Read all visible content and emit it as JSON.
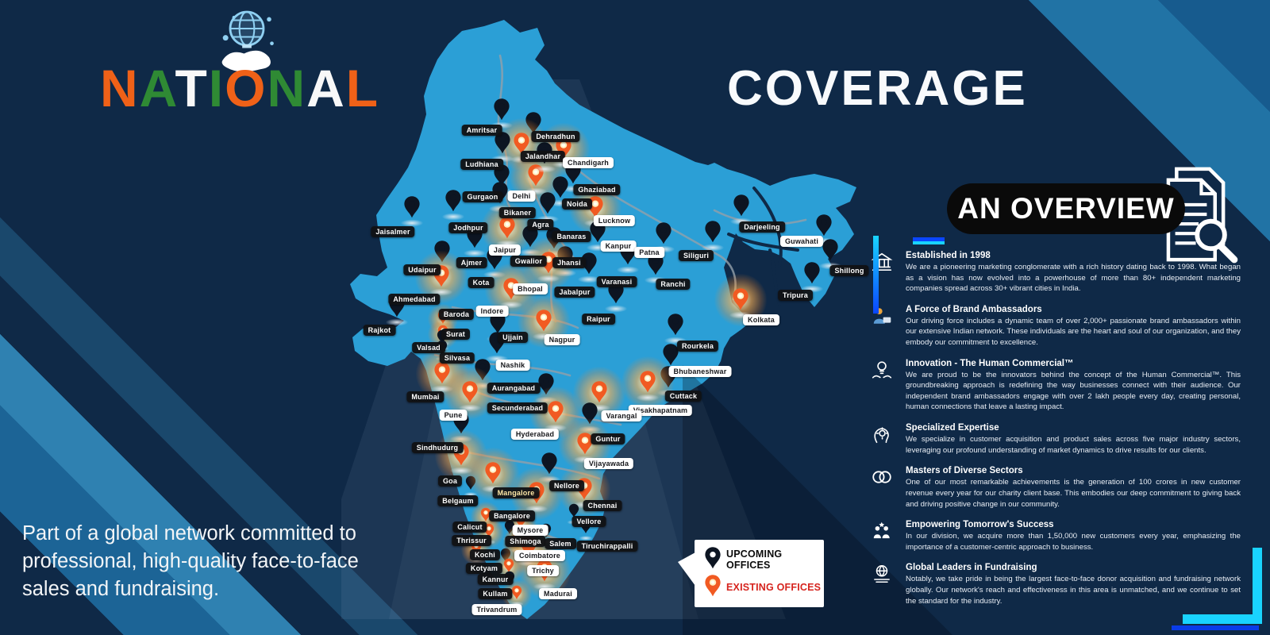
{
  "brand": {
    "letters": [
      {
        "ch": "N",
        "color": "#ef6118"
      },
      {
        "ch": "A",
        "color": "#2f8a34"
      },
      {
        "ch": "T",
        "color": "#f8f8f8"
      },
      {
        "ch": "I",
        "color": "#2f8a34"
      },
      {
        "ch": "O",
        "color": "#ef6118"
      },
      {
        "ch": "N",
        "color": "#2f8a34"
      },
      {
        "ch": "A",
        "color": "#f8f8f8"
      },
      {
        "ch": "L",
        "color": "#ef6118"
      }
    ],
    "icon": "hand-globe-icon"
  },
  "title": "COVERAGE",
  "tagline": "Part of a global network committed to professional, high-quality face-to-face sales and fundraising.",
  "overview": {
    "badge": "AN OVERVIEW",
    "icon": "document-magnifier-icon",
    "sections": [
      {
        "icon": "bank-icon",
        "title": "Established in 1998",
        "body": "We are a pioneering marketing conglomerate with a rich history dating back to 1998. What began as a vision has now evolved into a powerhouse of more than 80+ independent marketing companies spread across 30+ vibrant cities in India."
      },
      {
        "icon": "ambassador-icon",
        "title": "A Force of Brand Ambassadors",
        "body": "Our driving force includes a dynamic team of over 2,000+ passionate brand ambassadors within our extensive Indian network. These individuals are the heart and soul of our organization, and they embody our commitment to excellence."
      },
      {
        "icon": "innovation-icon",
        "title": "Innovation - The Human Commercial™",
        "body": "We are proud to be the innovators behind the concept of the Human Commercial™. This groundbreaking approach is redefining the way businesses connect with their audience. Our independent brand ambassadors engage with over 2 lakh people every day, creating personal, human connections that leave a lasting impact."
      },
      {
        "icon": "expertise-icon",
        "title": "Specialized Expertise",
        "body": "We specialize in customer acquisition and product sales across five major industry sectors, leveraging our profound understanding of market dynamics to drive results for our clients."
      },
      {
        "icon": "sectors-icon",
        "title": "Masters of Diverse Sectors",
        "body": "One of our most remarkable achievements is the generation of 100 crores in new customer revenue every year for our charity client base. This embodies our deep commitment to giving back and driving positive change in our community."
      },
      {
        "icon": "empowering-icon",
        "title": "Empowering Tomorrow's Success",
        "body": "In our division, we acquire more than 1,50,000 new customers every year, emphasizing the importance of a customer-centric approach to business."
      },
      {
        "icon": "fundraising-icon",
        "title": "Global Leaders in Fundraising",
        "body": "Notably, we take pride in being the largest face-to-face donor acquisition and fundraising network globally. Our network's reach and effectiveness in this area is unmatched, and we continue to set the standard for the industry."
      }
    ]
  },
  "legend": {
    "items": [
      {
        "label": "UPCOMING OFFICES",
        "pin": "upcoming",
        "color": "#0a0a0a"
      },
      {
        "label": "EXISTING OFFICES",
        "pin": "existing",
        "color": "#d6241e"
      }
    ]
  },
  "colors": {
    "background": "#0f2947",
    "map_blue": "#2b9fd6",
    "pin_black": "#0d1522",
    "pin_orange": "#f15a22",
    "existing_red": "#d6241e",
    "accent_cyan": "#19d3ff",
    "accent_blue": "#0a46ff"
  },
  "map": {
    "cities": [
      {
        "n": "Amritsar",
        "p": [
          632,
          158
        ],
        "t": "u",
        "s": 0,
        "l": [
          607,
          164
        ],
        "c": "d"
      },
      {
        "n": "Dehradhun",
        "p": [
          672,
          175
        ],
        "t": "u",
        "s": 0,
        "l": [
          700,
          172
        ],
        "c": "d"
      },
      {
        "n": "Jalandhar",
        "p": [
          657,
          201
        ],
        "t": "e",
        "s": 0,
        "l": [
          684,
          197
        ],
        "c": "d"
      },
      {
        "n": "Ludhiana",
        "p": [
          633,
          200
        ],
        "t": "u",
        "s": 0,
        "l": [
          607,
          207
        ],
        "c": "d"
      },
      {
        "n": "Chandigarh",
        "p": [
          710,
          207
        ],
        "t": "e",
        "s": 0,
        "l": [
          741,
          205
        ],
        "c": "w"
      },
      {
        "n": "Gurgaon",
        "p": [
          632,
          241
        ],
        "t": "u",
        "s": 0,
        "l": [
          608,
          248
        ],
        "c": "d"
      },
      {
        "n": "Delhi",
        "p": [
          675,
          241
        ],
        "t": "e",
        "s": 0,
        "l": [
          657,
          247
        ],
        "c": "w"
      },
      {
        "n": "Ghaziabad",
        "p": [
          722,
          238
        ],
        "t": "u",
        "s": 0,
        "l": [
          752,
          239
        ],
        "c": "d"
      },
      {
        "n": "Noida",
        "p": [
          706,
          256
        ],
        "t": "u",
        "s": 0,
        "l": [
          727,
          257
        ],
        "c": "d"
      },
      {
        "n": "Bikaner",
        "p": [
          630,
          263
        ],
        "t": "u",
        "s": 0,
        "l": [
          652,
          268
        ],
        "c": "d"
      },
      {
        "n": "Agra",
        "p": [
          690,
          276
        ],
        "t": "u",
        "s": 0,
        "l": [
          681,
          283
        ],
        "c": "d"
      },
      {
        "n": "Lucknow",
        "p": [
          750,
          281
        ],
        "t": "e",
        "s": 0,
        "l": [
          774,
          278
        ],
        "c": "w"
      },
      {
        "n": "Jodhpur",
        "p": [
          571,
          273
        ],
        "t": "u",
        "s": 0,
        "l": [
          590,
          287
        ],
        "c": "d"
      },
      {
        "n": "Jaisalmer",
        "p": [
          519,
          281
        ],
        "t": "u",
        "s": 0,
        "l": [
          495,
          292
        ],
        "c": "d"
      },
      {
        "n": "Jaipur",
        "p": [
          639,
          307
        ],
        "t": "e",
        "s": 0,
        "l": [
          636,
          315
        ],
        "c": "w"
      },
      {
        "n": "Ajmer",
        "p": [
          598,
          319
        ],
        "t": "u",
        "s": 0,
        "l": [
          594,
          331
        ],
        "c": "d"
      },
      {
        "n": "Udaipur",
        "p": [
          557,
          337
        ],
        "t": "u",
        "s": 0,
        "l": [
          532,
          340
        ],
        "c": "d"
      },
      {
        "n": "Kota",
        "p": [
          623,
          346
        ],
        "t": "u",
        "s": 0,
        "l": [
          606,
          356
        ],
        "c": "d"
      },
      {
        "n": "Gwalior",
        "p": [
          668,
          318
        ],
        "t": "u",
        "s": 0,
        "l": [
          666,
          329
        ],
        "c": "d"
      },
      {
        "n": "Banaras",
        "p": [
          698,
          320
        ],
        "t": "u",
        "s": 0,
        "l": [
          720,
          298
        ],
        "c": "d"
      },
      {
        "n": "Kanpur",
        "p": [
          753,
          312
        ],
        "t": "u",
        "s": 0,
        "l": [
          779,
          310
        ],
        "c": "w"
      },
      {
        "n": "Patna",
        "p": [
          836,
          314
        ],
        "t": "u",
        "s": 0,
        "l": [
          818,
          318
        ],
        "c": "w"
      },
      {
        "n": "Siliguri",
        "p": [
          898,
          312
        ],
        "t": "u",
        "s": 0,
        "l": [
          877,
          322
        ],
        "c": "d"
      },
      {
        "n": "Darjeeling",
        "p": [
          934,
          279
        ],
        "t": "u",
        "s": 0,
        "l": [
          960,
          286
        ],
        "c": "d"
      },
      {
        "n": "Guwahati",
        "p": [
          1038,
          304
        ],
        "t": "u",
        "s": 0,
        "l": [
          1010,
          304
        ],
        "c": "w"
      },
      {
        "n": "Shillong",
        "p": [
          1046,
          335
        ],
        "t": "u",
        "s": 0,
        "l": [
          1070,
          341
        ],
        "c": "d"
      },
      {
        "n": "Tripura",
        "p": [
          1023,
          364
        ],
        "t": "u",
        "s": 0,
        "l": [
          1002,
          372
        ],
        "c": "d"
      },
      {
        "n": "Jhansi",
        "p": [
          712,
          344
        ],
        "t": "u",
        "s": 0,
        "l": [
          717,
          331
        ],
        "c": "d"
      },
      {
        "n": "Bhopal",
        "p": [
          691,
          351
        ],
        "t": "e",
        "s": 0,
        "l": [
          668,
          364
        ],
        "c": "w"
      },
      {
        "n": "Varanasi",
        "p": [
          791,
          340
        ],
        "t": "u",
        "s": 0,
        "l": [
          777,
          355
        ],
        "c": "d"
      },
      {
        "n": "Ranchi",
        "p": [
          826,
          353
        ],
        "t": "u",
        "s": 0,
        "l": [
          848,
          358
        ],
        "c": "d"
      },
      {
        "n": "Jabalpur",
        "p": [
          742,
          352
        ],
        "t": "u",
        "s": 0,
        "l": [
          724,
          368
        ],
        "c": "d"
      },
      {
        "n": "Ahmedabad",
        "p": [
          556,
          368
        ],
        "t": "e",
        "s": 0,
        "l": [
          522,
          377
        ],
        "c": "d"
      },
      {
        "n": "Indore",
        "p": [
          644,
          384
        ],
        "t": "e",
        "s": 0,
        "l": [
          620,
          392
        ],
        "c": "w"
      },
      {
        "n": "Ujjain",
        "p": [
          627,
          427
        ],
        "t": "u",
        "s": 0,
        "l": [
          646,
          425
        ],
        "c": "d"
      },
      {
        "n": "Baroda",
        "p": [
          558,
          414
        ],
        "t": "e",
        "s": 1,
        "l": [
          575,
          396
        ],
        "c": "d"
      },
      {
        "n": "Rajkot",
        "p": [
          500,
          406
        ],
        "t": "u",
        "s": 0,
        "l": [
          478,
          416
        ],
        "c": "d"
      },
      {
        "n": "Surat",
        "p": [
          558,
          433
        ],
        "t": "e",
        "s": 1,
        "l": [
          574,
          421
        ],
        "c": "d"
      },
      {
        "n": "Valsad",
        "p": [
          557,
          439
        ],
        "t": "u",
        "s": 1,
        "l": [
          540,
          438
        ],
        "c": "d"
      },
      {
        "n": "Silvasa",
        "p": [
          557,
          452
        ],
        "t": "u",
        "s": 1,
        "l": [
          576,
          451
        ],
        "c": "d"
      },
      {
        "n": "Nagpur",
        "p": [
          685,
          424
        ],
        "t": "e",
        "s": 0,
        "l": [
          708,
          428
        ],
        "c": "w"
      },
      {
        "n": "Raipur",
        "p": [
          776,
          389
        ],
        "t": "u",
        "s": 0,
        "l": [
          754,
          402
        ],
        "c": "d"
      },
      {
        "n": "Rourkela",
        "p": [
          851,
          429
        ],
        "t": "u",
        "s": 0,
        "l": [
          879,
          436
        ],
        "c": "d"
      },
      {
        "n": "Kolkata",
        "p": [
          933,
          397
        ],
        "t": "e",
        "s": 0,
        "l": [
          959,
          403
        ],
        "c": "w"
      },
      {
        "n": "Bhubaneshwar",
        "p": [
          845,
          467
        ],
        "t": "u",
        "s": 0,
        "l": [
          882,
          468
        ],
        "c": "w"
      },
      {
        "n": "Cuttack",
        "p": [
          842,
          495
        ],
        "t": "u",
        "s": 0,
        "l": [
          861,
          499
        ],
        "c": "d"
      },
      {
        "n": "Nashik",
        "p": [
          626,
          452
        ],
        "t": "u",
        "s": 0,
        "l": [
          646,
          460
        ],
        "c": "w"
      },
      {
        "n": "Aurangabad",
        "p": [
          608,
          486
        ],
        "t": "u",
        "s": 0,
        "l": [
          647,
          489
        ],
        "c": "d"
      },
      {
        "n": "Mumbai",
        "p": [
          557,
          490
        ],
        "t": "e",
        "s": 0,
        "l": [
          536,
          500
        ],
        "c": "d"
      },
      {
        "n": "Secunderabad",
        "p": [
          688,
          504
        ],
        "t": "u",
        "s": 0,
        "l": [
          652,
          514
        ],
        "c": "d"
      },
      {
        "n": "Hyderabad",
        "p": [
          700,
          539
        ],
        "t": "e",
        "s": 0,
        "l": [
          674,
          547
        ],
        "c": "w"
      },
      {
        "n": "Pune",
        "p": [
          592,
          514
        ],
        "t": "e",
        "s": 0,
        "l": [
          571,
          523
        ],
        "c": "w"
      },
      {
        "n": "Sindhudurg",
        "p": [
          581,
          553
        ],
        "t": "u",
        "s": 0,
        "l": [
          551,
          564
        ],
        "c": "d"
      },
      {
        "n": "Visakhapatnam",
        "p": [
          816,
          501
        ],
        "t": "e",
        "s": 0,
        "l": [
          832,
          517
        ],
        "c": "w"
      },
      {
        "n": "Varangal",
        "p": [
          755,
          514
        ],
        "t": "e",
        "s": 0,
        "l": [
          783,
          524
        ],
        "c": "w"
      },
      {
        "n": "Guntur",
        "p": [
          743,
          541
        ],
        "t": "u",
        "s": 0,
        "l": [
          766,
          553
        ],
        "c": "d"
      },
      {
        "n": "Vijayawada",
        "p": [
          737,
          579
        ],
        "t": "e",
        "s": 0,
        "l": [
          767,
          584
        ],
        "c": "w"
      },
      {
        "n": "Nellore",
        "p": [
          692,
          604
        ],
        "t": "u",
        "s": 0,
        "l": [
          714,
          612
        ],
        "c": "d"
      },
      {
        "n": "Chennai",
        "p": [
          736,
          636
        ],
        "t": "e",
        "s": 0,
        "l": [
          759,
          637
        ],
        "c": "d"
      },
      {
        "n": "Goa",
        "p": [
          581,
          593
        ],
        "t": "e",
        "s": 0,
        "l": [
          567,
          606
        ],
        "c": "d"
      },
      {
        "n": "Belgaum",
        "p": [
          593,
          623
        ],
        "t": "u",
        "s": 1,
        "l": [
          577,
          631
        ],
        "c": "d"
      },
      {
        "n": "Mangalore",
        "p": [
          621,
          616
        ],
        "t": "e",
        "s": 0,
        "l": [
          650,
          621
        ],
        "c": "d",
        "tc": "#ffe9a8"
      },
      {
        "n": "Bangalore",
        "p": [
          676,
          641
        ],
        "t": "e",
        "s": 0,
        "l": [
          645,
          650
        ],
        "c": "d"
      },
      {
        "n": "Vellore",
        "p": [
          723,
          658
        ],
        "t": "u",
        "s": 1,
        "l": [
          742,
          657
        ],
        "c": "d"
      },
      {
        "n": "Calicut",
        "p": [
          612,
          663
        ],
        "t": "e",
        "s": 1,
        "l": [
          592,
          664
        ],
        "c": "d"
      },
      {
        "n": "Mysore",
        "p": [
          656,
          671
        ],
        "t": "e",
        "s": 1,
        "l": [
          668,
          668
        ],
        "c": "w"
      },
      {
        "n": "Shimoga",
        "p": [
          642,
          679
        ],
        "t": "u",
        "s": 1,
        "l": [
          662,
          682
        ],
        "c": "d"
      },
      {
        "n": "Salem",
        "p": [
          688,
          683
        ],
        "t": "u",
        "s": 1,
        "l": [
          706,
          685
        ],
        "c": "d"
      },
      {
        "n": "Thrissur",
        "p": [
          616,
          683
        ],
        "t": "e",
        "s": 1,
        "l": [
          594,
          681
        ],
        "c": "d"
      },
      {
        "n": "Coimbatore",
        "p": [
          653,
          694
        ],
        "t": "e",
        "s": 1,
        "l": [
          680,
          700
        ],
        "c": "w"
      },
      {
        "n": "Kochi",
        "p": [
          600,
          705
        ],
        "t": "e",
        "s": 1,
        "l": [
          611,
          699
        ],
        "c": "d"
      },
      {
        "n": "Tiruchirappalli",
        "p": [
          738,
          678
        ],
        "t": "u",
        "s": 1,
        "l": [
          765,
          688
        ],
        "c": "d"
      },
      {
        "n": "Kotyam",
        "p": [
          637,
          714
        ],
        "t": "u",
        "s": 1,
        "l": [
          610,
          716
        ],
        "c": "d"
      },
      {
        "n": "Trichy",
        "p": [
          666,
          709
        ],
        "t": "e",
        "s": 0,
        "l": [
          684,
          719
        ],
        "c": "w"
      },
      {
        "n": "Kannur",
        "p": [
          641,
          727
        ],
        "t": "e",
        "s": 1,
        "l": [
          624,
          730
        ],
        "c": "d"
      },
      {
        "n": "Kullam",
        "p": [
          642,
          743
        ],
        "t": "u",
        "s": 1,
        "l": [
          624,
          748
        ],
        "c": "d"
      },
      {
        "n": "Madurai",
        "p": [
          686,
          739
        ],
        "t": "e",
        "s": 0,
        "l": [
          703,
          748
        ],
        "c": "w"
      },
      {
        "n": "Trivandrum",
        "p": [
          651,
          761
        ],
        "t": "e",
        "s": 1,
        "l": [
          626,
          768
        ],
        "c": "w"
      }
    ],
    "extra_pins": [
      {
        "p": [
          686,
          213
        ],
        "t": "u",
        "s": 0
      }
    ]
  }
}
